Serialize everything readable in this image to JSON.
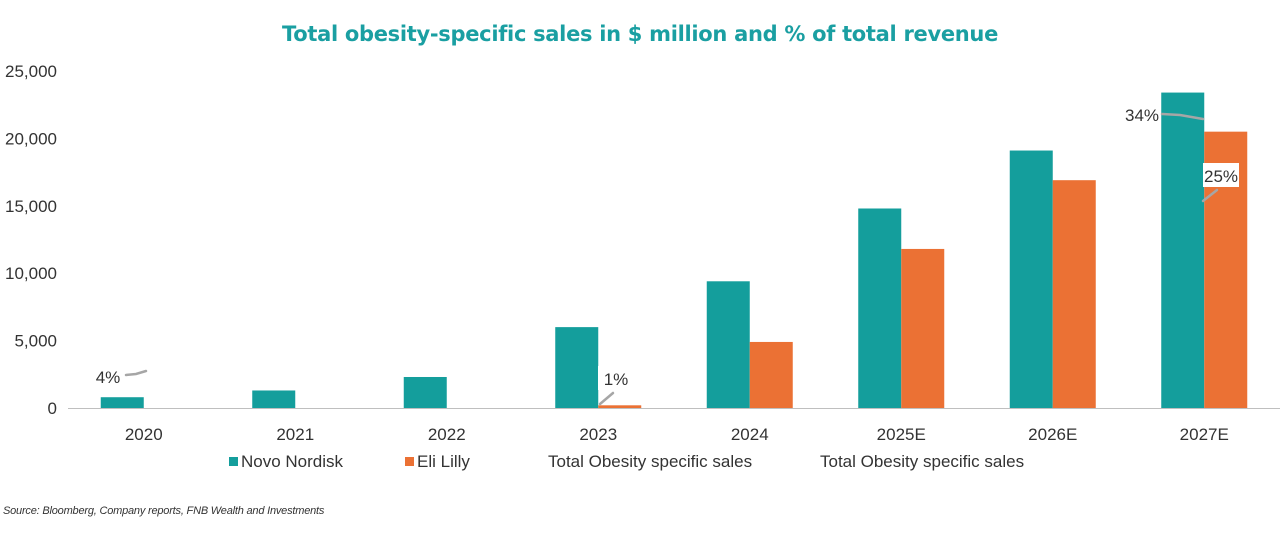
{
  "colors": {
    "title": "#1a9fa2",
    "novo": "#149e9c",
    "lilly": "#eb7134",
    "axis": "#bfbfbf",
    "leader": "#a6a6a6",
    "text": "#333333"
  },
  "chart_data": {
    "type": "bar",
    "title": "Total obesity-specific sales in $ million and % of total revenue",
    "categories": [
      "2020",
      "2021",
      "2022",
      "2023",
      "2024",
      "2025E",
      "2026E",
      "2027E"
    ],
    "series": [
      {
        "name": "Novo Nordisk",
        "values": [
          800,
          1300,
          2300,
          6000,
          9400,
          14800,
          19100,
          23400
        ]
      },
      {
        "name": "Eli Lilly",
        "values": [
          0,
          0,
          0,
          200,
          4900,
          11800,
          16900,
          20500
        ]
      }
    ],
    "ylim": [
      0,
      25000
    ],
    "yticks": [
      0,
      5000,
      10000,
      15000,
      20000,
      25000
    ],
    "ytick_labels": [
      "0",
      "5,000",
      "10,000",
      "15,000",
      "20,000",
      "25,000"
    ],
    "legend_position": "bottom",
    "legend_extra": [
      "Total Obesity specific sales",
      "Total Obesity specific sales"
    ],
    "percent_labels": [
      {
        "series": "Novo Nordisk",
        "category": "2020",
        "label": "4%"
      },
      {
        "series": "Eli Lilly",
        "category": "2023",
        "label": "1%"
      },
      {
        "series": "Novo Nordisk",
        "category": "2027E",
        "label": "34%"
      },
      {
        "series": "Eli Lilly",
        "category": "2027E",
        "label": "25%"
      }
    ]
  },
  "source": "Source: Bloomberg, Company reports, FNB Wealth and Investments"
}
